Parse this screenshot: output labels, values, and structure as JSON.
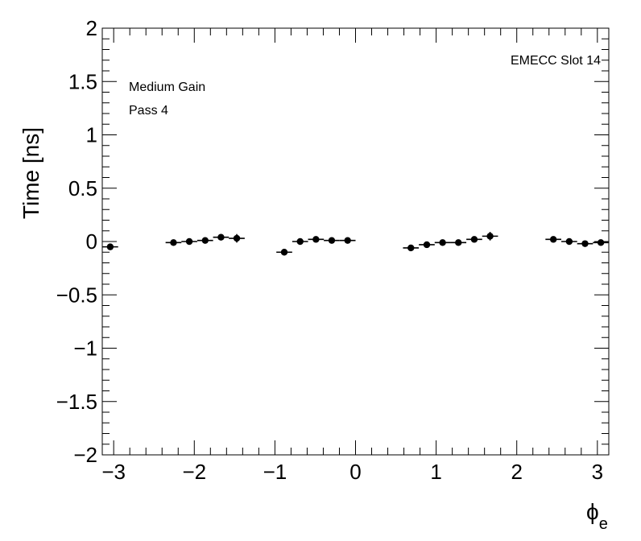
{
  "chart_data": {
    "type": "scatter",
    "xlabel": "ϕ",
    "xlabel_subscript": "e",
    "ylabel": "Time [ns]",
    "xlim": [
      -3.1416,
      3.1416
    ],
    "ylim": [
      -2,
      2
    ],
    "x_ticks": [
      {
        "value": -3,
        "label": "−3"
      },
      {
        "value": -2,
        "label": "−2"
      },
      {
        "value": -1,
        "label": "−1"
      },
      {
        "value": 0,
        "label": "0"
      },
      {
        "value": 1,
        "label": "1"
      },
      {
        "value": 2,
        "label": "2"
      },
      {
        "value": 3,
        "label": "3"
      }
    ],
    "y_ticks": [
      {
        "value": 2,
        "label": "2"
      },
      {
        "value": 1.5,
        "label": "1.5"
      },
      {
        "value": 1,
        "label": "1"
      },
      {
        "value": 0.5,
        "label": "0.5"
      },
      {
        "value": 0,
        "label": "0"
      },
      {
        "value": -0.5,
        "label": "−0.5"
      },
      {
        "value": -1,
        "label": "−1"
      },
      {
        "value": -1.5,
        "label": "−1.5"
      },
      {
        "value": -2,
        "label": "−2"
      }
    ],
    "annotations": {
      "top_right": "EMECC Slot 14",
      "line1": "Medium Gain",
      "line2": "Pass 4"
    },
    "grid": false,
    "bin_half_width": 0.0982,
    "points": [
      {
        "x": -3.043,
        "y": -0.05,
        "yerr": 0.012
      },
      {
        "x": -2.258,
        "y": -0.01,
        "yerr": 0.015
      },
      {
        "x": -2.062,
        "y": 0.0,
        "yerr": 0.015
      },
      {
        "x": -1.865,
        "y": 0.01,
        "yerr": 0.015
      },
      {
        "x": -1.669,
        "y": 0.04,
        "yerr": 0.02
      },
      {
        "x": -1.473,
        "y": 0.03,
        "yerr": 0.04
      },
      {
        "x": -0.884,
        "y": -0.1,
        "yerr": 0.03
      },
      {
        "x": -0.687,
        "y": 0.0,
        "yerr": 0.015
      },
      {
        "x": -0.491,
        "y": 0.02,
        "yerr": 0.015
      },
      {
        "x": -0.295,
        "y": 0.01,
        "yerr": 0.015
      },
      {
        "x": -0.098,
        "y": 0.01,
        "yerr": 0.015
      },
      {
        "x": 0.687,
        "y": -0.06,
        "yerr": 0.03
      },
      {
        "x": 0.884,
        "y": -0.03,
        "yerr": 0.015
      },
      {
        "x": 1.08,
        "y": -0.01,
        "yerr": 0.015
      },
      {
        "x": 1.276,
        "y": -0.01,
        "yerr": 0.015
      },
      {
        "x": 1.473,
        "y": 0.02,
        "yerr": 0.015
      },
      {
        "x": 1.669,
        "y": 0.05,
        "yerr": 0.04
      },
      {
        "x": 2.454,
        "y": 0.02,
        "yerr": 0.015
      },
      {
        "x": 2.651,
        "y": 0.0,
        "yerr": 0.015
      },
      {
        "x": 2.847,
        "y": -0.02,
        "yerr": 0.015
      },
      {
        "x": 3.043,
        "y": -0.01,
        "yerr": 0.015
      }
    ]
  }
}
